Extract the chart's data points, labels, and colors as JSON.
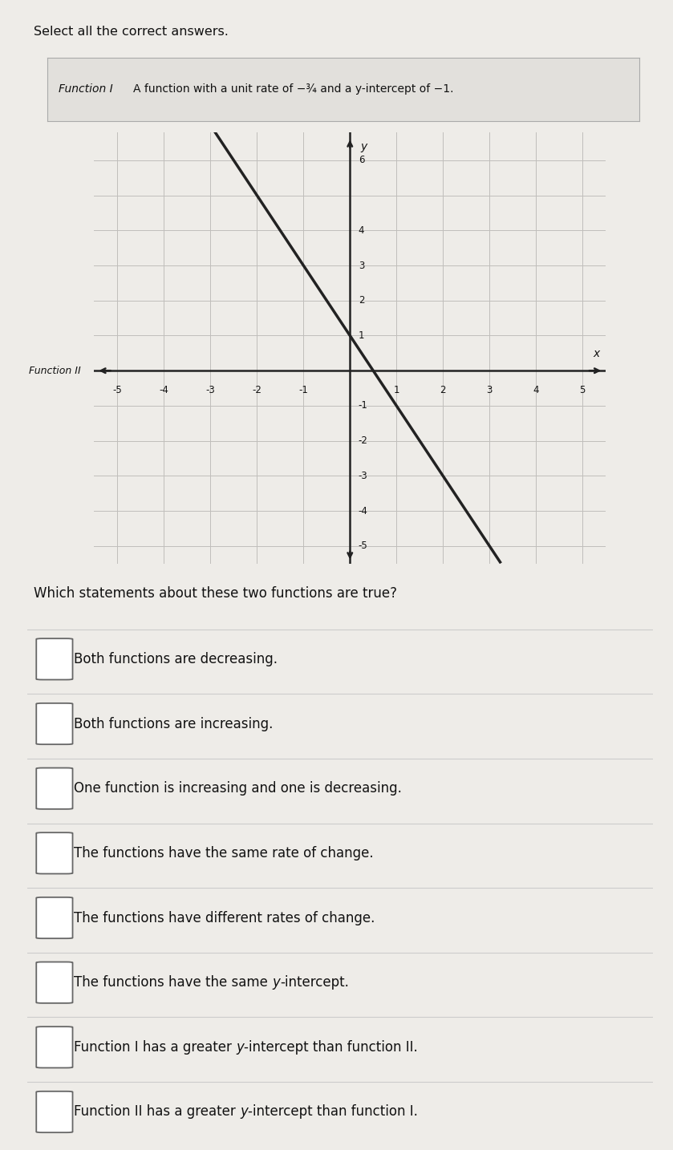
{
  "title_instruction": "Select all the correct answers.",
  "function1_label": "Function I",
  "function1_desc": "A function with a unit rate of −¾ and a y-intercept of −1.",
  "function2_label": "Function II",
  "function2_slope": -2.0,
  "function2_yintercept": 1,
  "graph_xlim": [
    -5.5,
    5.5
  ],
  "graph_ylim": [
    -5.5,
    6.8
  ],
  "graph_xticks": [
    -5,
    -4,
    -3,
    -2,
    -1,
    1,
    2,
    3,
    4,
    5
  ],
  "graph_yticks": [
    -5,
    -4,
    -3,
    -2,
    -1,
    1,
    2,
    3,
    4,
    6
  ],
  "question_text": "Which statements about these two functions are true?",
  "options": [
    "Both functions are decreasing.",
    "Both functions are increasing.",
    "One function is increasing and one is decreasing.",
    "The functions have the same rate of change.",
    "The functions have different rates of change.",
    "The functions have the same y-intercept.",
    "Function I has a greater y-intercept than function II.",
    "Function II has a greater y-intercept than function I."
  ],
  "bg_color": "#eeece8",
  "graph_bg_color": "#d8d6d0",
  "grid_color": "#c0bebb",
  "axis_color": "#222222",
  "text_color": "#111111",
  "checkbox_color": "#666666",
  "divider_color": "#cccccc",
  "graph_line_color": "#222222",
  "header_bg": "#e2e0dc"
}
